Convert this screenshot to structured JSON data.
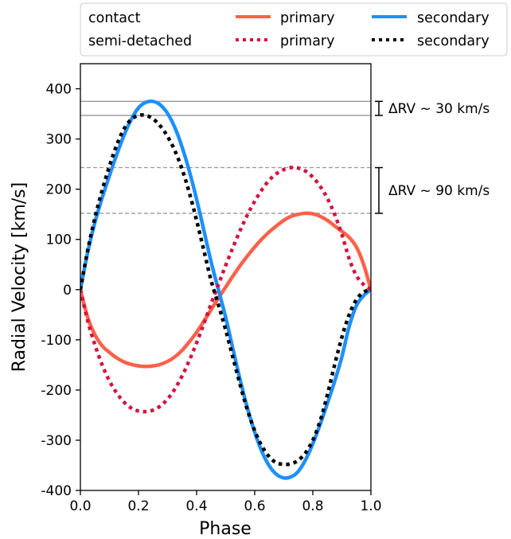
{
  "chart_data": {
    "type": "line",
    "xlabel": "Phase",
    "ylabel": "Radial Velocity [km/s]",
    "xlim": [
      0.0,
      1.0
    ],
    "ylim": [
      -400,
      450
    ],
    "xticks": [
      0.0,
      0.2,
      0.4,
      0.6,
      0.8,
      1.0
    ],
    "xtick_labels": [
      "0.0",
      "0.2",
      "0.4",
      "0.6",
      "0.8",
      "1.0"
    ],
    "yticks": [
      -400,
      -300,
      -200,
      -100,
      0,
      100,
      200,
      300,
      400
    ],
    "ytick_labels": [
      "-400",
      "-300",
      "-200",
      "-100",
      "0",
      "100",
      "200",
      "300",
      "400"
    ],
    "grid": false,
    "legend": {
      "placement": "top",
      "group_labels": [
        "contact",
        "semi-detached"
      ],
      "entries": [
        {
          "label": "primary",
          "group": "contact",
          "color": "#fb6249",
          "style": "solid"
        },
        {
          "label": "secondary",
          "group": "contact",
          "color": "#1e90ff",
          "style": "solid"
        },
        {
          "label": "primary",
          "group": "semi-detached",
          "color": "#d4143f",
          "style": "dotted"
        },
        {
          "label": "secondary",
          "group": "semi-detached",
          "color": "#000000",
          "style": "dotted"
        }
      ]
    },
    "series": [
      {
        "name": "primary",
        "group": "contact",
        "color": "#fb6249",
        "style": "solid",
        "x": [
          0.0,
          0.025,
          0.05,
          0.075,
          0.1,
          0.125,
          0.15,
          0.175,
          0.2,
          0.225,
          0.25,
          0.275,
          0.3,
          0.325,
          0.35,
          0.375,
          0.4,
          0.425,
          0.45,
          0.475,
          0.5,
          0.525,
          0.55,
          0.575,
          0.6,
          0.625,
          0.65,
          0.675,
          0.7,
          0.725,
          0.75,
          0.775,
          0.8,
          0.825,
          0.85,
          0.875,
          0.9,
          0.925,
          0.95,
          0.975,
          1.0
        ],
        "y": [
          0,
          -55,
          -90,
          -112,
          -125,
          -136,
          -144,
          -149,
          -152,
          -153,
          -152,
          -149,
          -143,
          -134,
          -121,
          -104,
          -85,
          -63,
          -40,
          -17,
          5,
          27,
          48,
          67,
          85,
          101,
          115,
          127,
          138,
          146,
          150,
          152,
          151,
          146,
          138,
          127,
          116,
          104,
          85,
          50,
          0
        ]
      },
      {
        "name": "secondary",
        "group": "contact",
        "color": "#1e90ff",
        "style": "solid",
        "x": [
          0.0,
          0.025,
          0.05,
          0.075,
          0.1,
          0.125,
          0.15,
          0.175,
          0.2,
          0.225,
          0.25,
          0.275,
          0.3,
          0.325,
          0.35,
          0.375,
          0.4,
          0.425,
          0.45,
          0.475,
          0.5,
          0.525,
          0.55,
          0.575,
          0.6,
          0.625,
          0.65,
          0.675,
          0.7,
          0.725,
          0.75,
          0.775,
          0.8,
          0.825,
          0.85,
          0.875,
          0.9,
          0.925,
          0.95,
          0.975,
          1.0
        ],
        "y": [
          0,
          74,
          134,
          183,
          227,
          269,
          307,
          339,
          362,
          373,
          375,
          368,
          351,
          323,
          284,
          236,
          180,
          118,
          55,
          0,
          -55,
          -118,
          -180,
          -236,
          -284,
          -323,
          -351,
          -368,
          -375,
          -373,
          -362,
          -339,
          -307,
          -269,
          -227,
          -183,
          -134,
          -74,
          -32,
          -12,
          0
        ]
      },
      {
        "name": "primary",
        "group": "semi-detached",
        "color": "#d4143f",
        "style": "dotted",
        "x": [
          0.0,
          0.025,
          0.05,
          0.075,
          0.1,
          0.125,
          0.15,
          0.175,
          0.2,
          0.225,
          0.25,
          0.275,
          0.3,
          0.325,
          0.35,
          0.375,
          0.4,
          0.425,
          0.45,
          0.475,
          0.5,
          0.525,
          0.55,
          0.575,
          0.6,
          0.625,
          0.65,
          0.675,
          0.7,
          0.725,
          0.75,
          0.775,
          0.8,
          0.825,
          0.85,
          0.875,
          0.9,
          0.925,
          0.95,
          0.975,
          1.0
        ],
        "y": [
          0,
          -62,
          -110,
          -150,
          -182,
          -206,
          -224,
          -236,
          -242,
          -243,
          -240,
          -232,
          -218,
          -198,
          -172,
          -141,
          -106,
          -68,
          -28,
          10,
          48,
          84,
          118,
          149,
          176,
          199,
          218,
          231,
          239,
          243,
          242,
          236,
          224,
          206,
          182,
          150,
          110,
          62,
          28,
          10,
          0
        ]
      },
      {
        "name": "secondary",
        "group": "semi-detached",
        "color": "#000000",
        "style": "dotted",
        "x": [
          0.0,
          0.025,
          0.05,
          0.075,
          0.1,
          0.125,
          0.15,
          0.175,
          0.2,
          0.225,
          0.25,
          0.275,
          0.3,
          0.325,
          0.35,
          0.375,
          0.4,
          0.425,
          0.45,
          0.475,
          0.5,
          0.525,
          0.55,
          0.575,
          0.6,
          0.625,
          0.65,
          0.675,
          0.7,
          0.725,
          0.75,
          0.775,
          0.8,
          0.825,
          0.85,
          0.875,
          0.9,
          0.925,
          0.95,
          0.975,
          1.0
        ],
        "y": [
          0,
          78,
          143,
          198,
          246,
          288,
          320,
          339,
          347,
          347,
          340,
          326,
          305,
          277,
          240,
          193,
          138,
          78,
          18,
          -30,
          -80,
          -135,
          -190,
          -240,
          -281,
          -312,
          -333,
          -345,
          -348,
          -347,
          -340,
          -325,
          -300,
          -262,
          -210,
          -150,
          -95,
          -50,
          -20,
          -5,
          0
        ]
      }
    ],
    "reference_lines": [
      {
        "y": 375,
        "style": "solid",
        "color": "#999999"
      },
      {
        "y": 347,
        "style": "solid",
        "color": "#999999"
      },
      {
        "y": 243,
        "style": "dashed",
        "color": "#999999"
      },
      {
        "y": 152,
        "style": "dashed",
        "color": "#999999"
      }
    ],
    "annotations": [
      {
        "text": "ΔRV ~ 30 km/s",
        "y_top": 375,
        "y_bottom": 347
      },
      {
        "text": "ΔRV ~ 90 km/s",
        "y_top": 243,
        "y_bottom": 152
      }
    ]
  }
}
